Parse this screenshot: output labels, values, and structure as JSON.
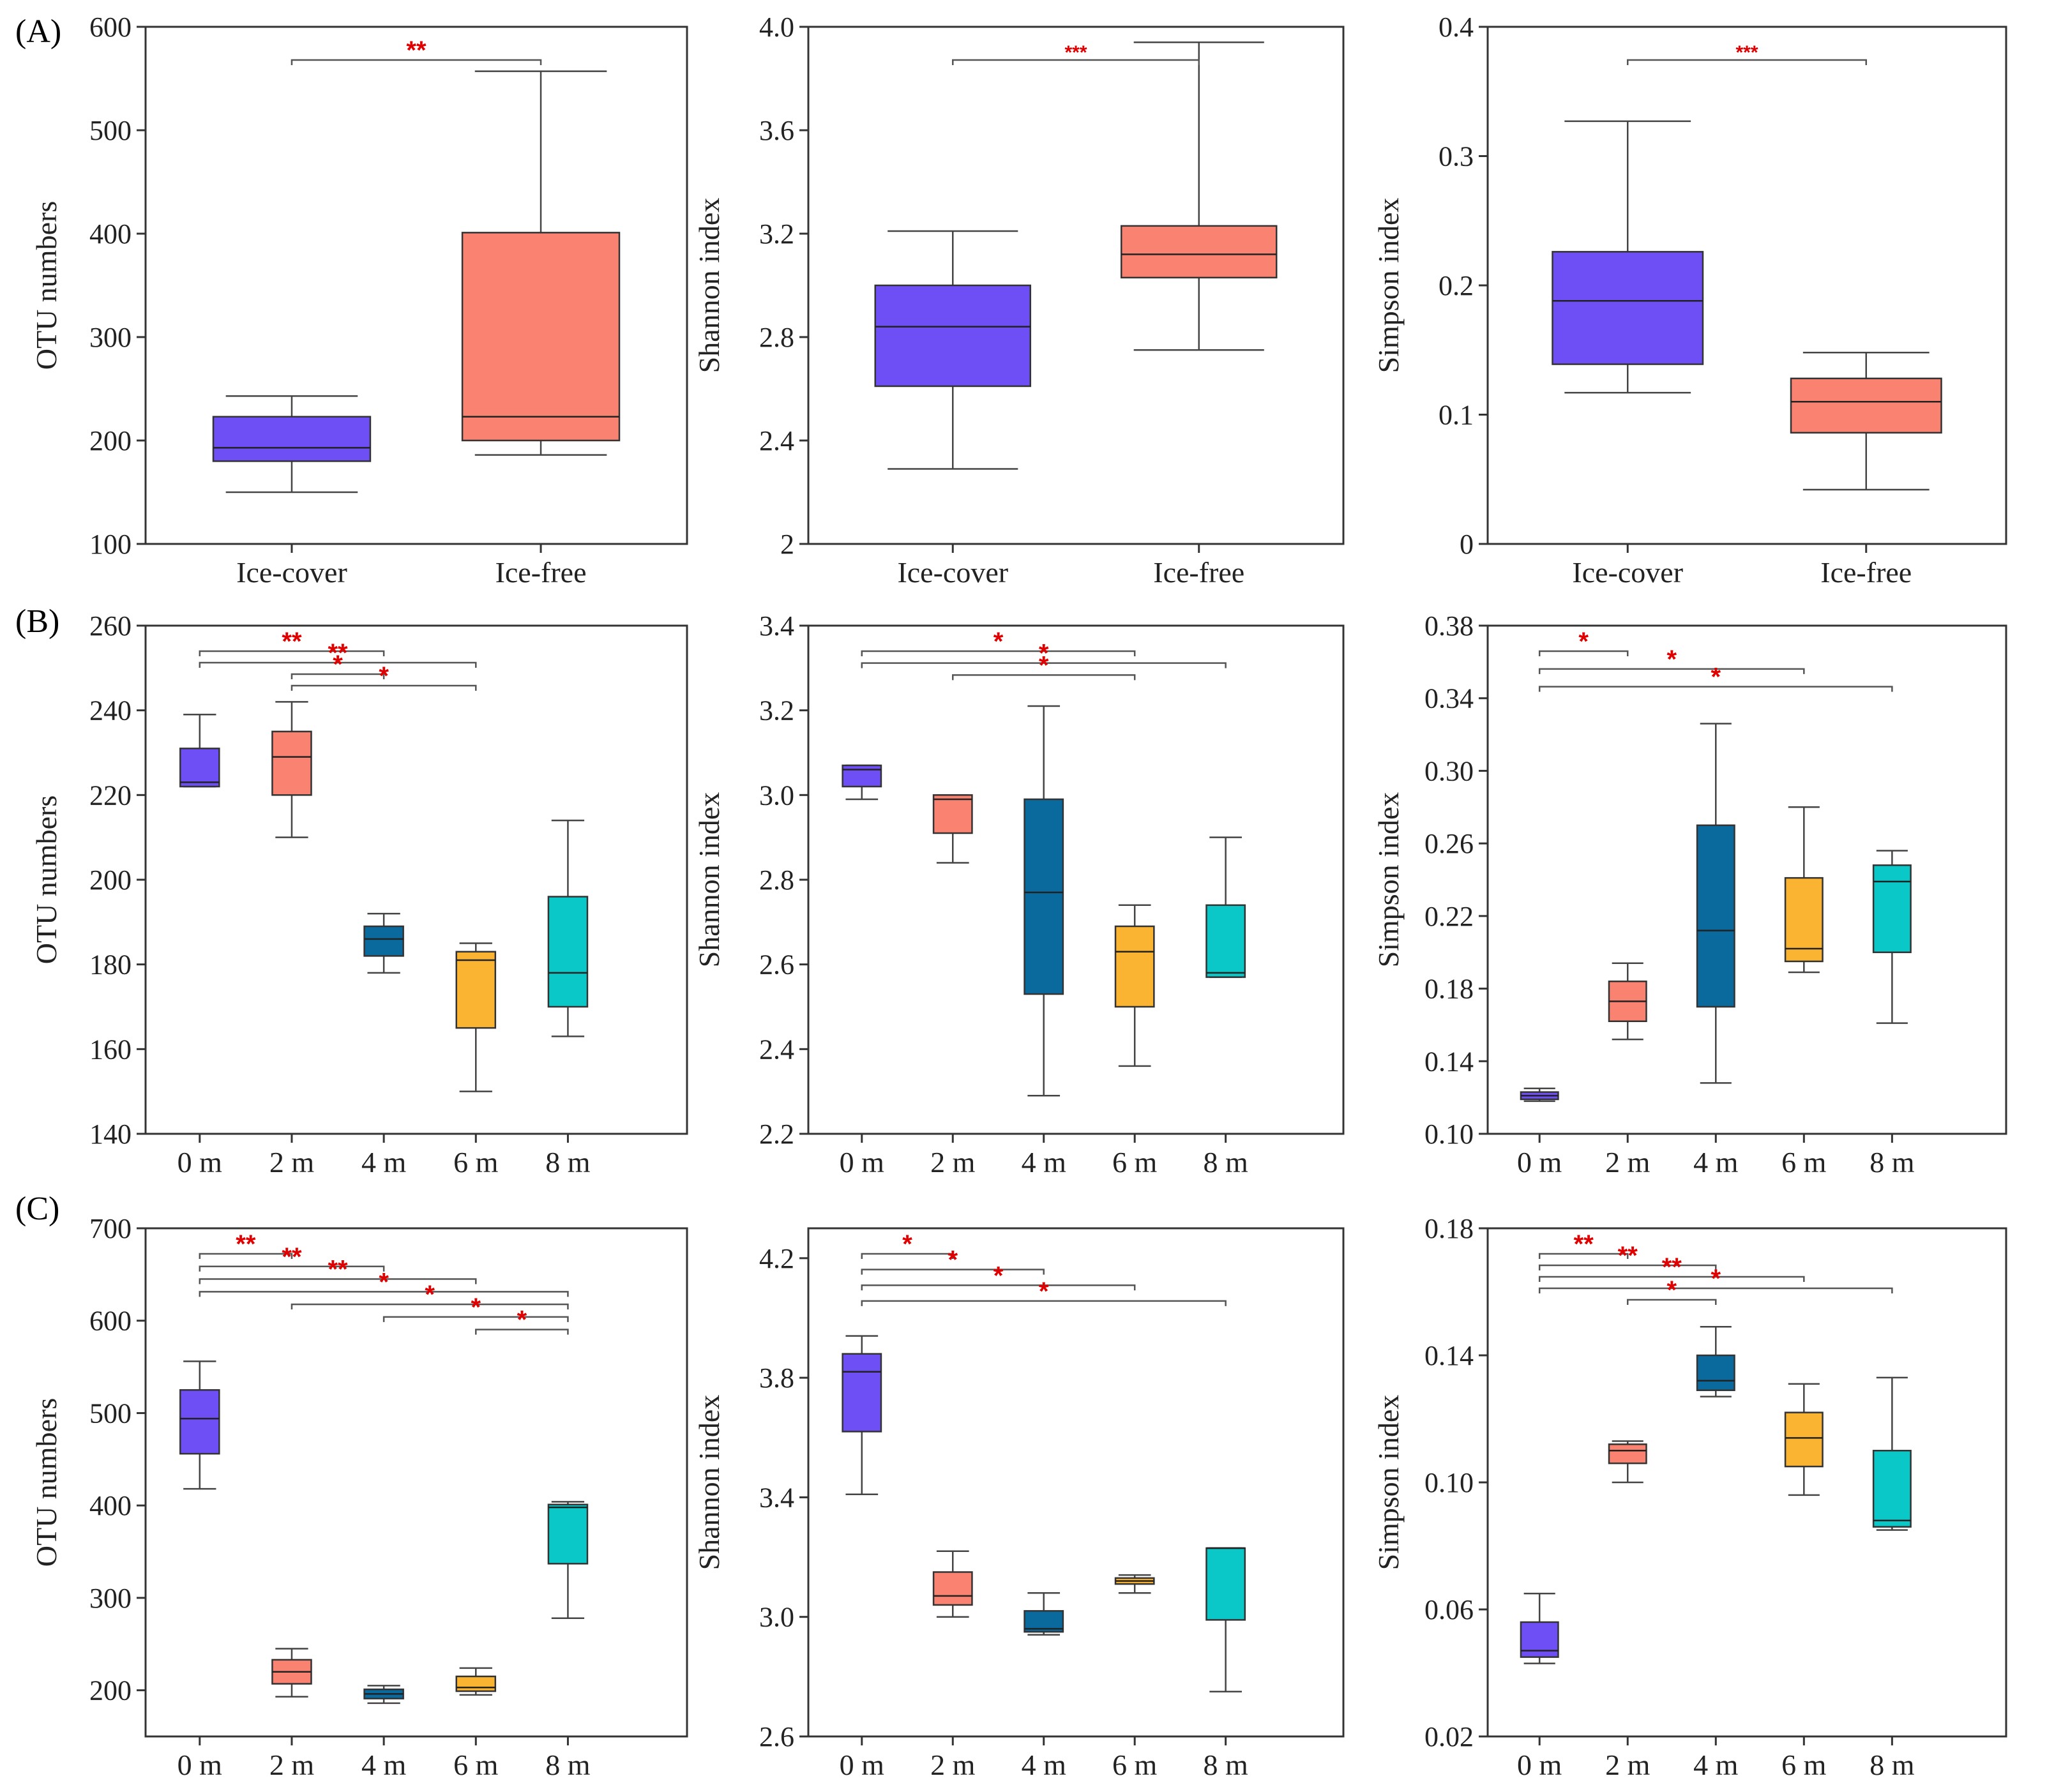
{
  "panel_labels": [
    "(A)",
    "(B)",
    "(C)"
  ],
  "colors": {
    "purple": "#6e4ff5",
    "salmon": "#fa8270",
    "blue": "#0a6a9e",
    "gold": "#fbb432",
    "cyan": "#0ac8c8",
    "sig": "#e00000"
  },
  "chart_data": [
    {
      "type": "box",
      "title": "",
      "ylabel": "OTU numbers",
      "ylim": [
        100,
        600
      ],
      "yticks": [
        100,
        200,
        300,
        400,
        500,
        600
      ],
      "tick_labels": [
        "100",
        "200",
        "300",
        "400",
        "500",
        "600"
      ],
      "categories": [
        "Ice-cover",
        "Ice-free"
      ],
      "boxes": [
        {
          "min": 150,
          "q1": 180,
          "median": 193,
          "q3": 223,
          "max": 243,
          "color": "purple"
        },
        {
          "min": 186,
          "q1": 200,
          "median": 223,
          "q3": 401,
          "max": 557,
          "color": "salmon"
        }
      ],
      "significance": [
        {
          "from": 0,
          "to": 1,
          "label": "**"
        }
      ]
    },
    {
      "type": "box",
      "title": "",
      "ylabel": "Shannon index",
      "ylim": [
        2.0,
        4.0
      ],
      "yticks": [
        2.0,
        2.4,
        2.8,
        3.2,
        3.6,
        4.0
      ],
      "tick_labels": [
        "2",
        "2.4",
        "2.8",
        "3.2",
        "3.6",
        "4.0"
      ],
      "categories": [
        "Ice-cover",
        "Ice-free"
      ],
      "boxes": [
        {
          "min": 2.29,
          "q1": 2.61,
          "median": 2.84,
          "q3": 3.0,
          "max": 3.21,
          "color": "purple"
        },
        {
          "min": 2.75,
          "q1": 3.03,
          "median": 3.12,
          "q3": 3.23,
          "max": 3.94,
          "color": "salmon"
        }
      ],
      "significance": [
        {
          "from": 0,
          "to": 1,
          "label": "***"
        }
      ]
    },
    {
      "type": "box",
      "title": "",
      "ylabel": "Simpson index",
      "ylim": [
        0,
        0.4
      ],
      "yticks": [
        0,
        0.1,
        0.2,
        0.3,
        0.4
      ],
      "tick_labels": [
        "0",
        "0.1",
        "0.2",
        "0.3",
        "0.4"
      ],
      "categories": [
        "Ice-cover",
        "Ice-free"
      ],
      "boxes": [
        {
          "min": 0.117,
          "q1": 0.139,
          "median": 0.188,
          "q3": 0.226,
          "max": 0.327,
          "color": "purple"
        },
        {
          "min": 0.042,
          "q1": 0.086,
          "median": 0.11,
          "q3": 0.128,
          "max": 0.148,
          "color": "salmon"
        }
      ],
      "significance": [
        {
          "from": 0,
          "to": 1,
          "label": "***"
        }
      ]
    },
    {
      "type": "box",
      "title": "",
      "ylabel": "OTU numbers",
      "ylim": [
        140,
        260
      ],
      "yticks": [
        140,
        160,
        180,
        200,
        220,
        240,
        260
      ],
      "tick_labels": [
        "140",
        "160",
        "180",
        "200",
        "220",
        "240",
        "260"
      ],
      "categories": [
        "0 m",
        "2 m",
        "4 m",
        "6 m",
        "8 m"
      ],
      "boxes": [
        {
          "min": 222,
          "q1": 222,
          "median": 223,
          "q3": 231,
          "max": 239,
          "color": "purple"
        },
        {
          "min": 210,
          "q1": 220,
          "median": 229,
          "q3": 235,
          "max": 242,
          "color": "salmon"
        },
        {
          "min": 178,
          "q1": 182,
          "median": 186,
          "q3": 189,
          "max": 192,
          "color": "blue"
        },
        {
          "min": 150,
          "q1": 165,
          "median": 181,
          "q3": 183,
          "max": 185,
          "color": "gold"
        },
        {
          "min": 163,
          "q1": 170,
          "median": 178,
          "q3": 196,
          "max": 214,
          "color": "cyan"
        }
      ],
      "significance": [
        {
          "from": 0,
          "to": 2,
          "label": "**"
        },
        {
          "from": 0,
          "to": 3,
          "label": "**"
        },
        {
          "from": 1,
          "to": 2,
          "label": "*"
        },
        {
          "from": 1,
          "to": 3,
          "label": "*"
        }
      ]
    },
    {
      "type": "box",
      "title": "",
      "ylabel": "Shannon index",
      "ylim": [
        2.2,
        3.4
      ],
      "yticks": [
        2.2,
        2.4,
        2.6,
        2.8,
        3.0,
        3.2,
        3.4
      ],
      "tick_labels": [
        "2.2",
        "2.4",
        "2.6",
        "2.8",
        "3.0",
        "3.2",
        "3.4"
      ],
      "categories": [
        "0 m",
        "2 m",
        "4 m",
        "6 m",
        "8 m"
      ],
      "boxes": [
        {
          "min": 2.99,
          "q1": 3.02,
          "median": 3.06,
          "q3": 3.07,
          "max": 3.07,
          "color": "purple"
        },
        {
          "min": 2.84,
          "q1": 2.91,
          "median": 2.99,
          "q3": 3.0,
          "max": 3.0,
          "color": "salmon"
        },
        {
          "min": 2.29,
          "q1": 2.53,
          "median": 2.77,
          "q3": 2.99,
          "max": 3.21,
          "color": "blue"
        },
        {
          "min": 2.36,
          "q1": 2.5,
          "median": 2.63,
          "q3": 2.69,
          "max": 2.74,
          "color": "gold"
        },
        {
          "min": 2.57,
          "q1": 2.57,
          "median": 2.58,
          "q3": 2.74,
          "max": 2.9,
          "color": "cyan"
        }
      ],
      "significance": [
        {
          "from": 0,
          "to": 3,
          "label": "*"
        },
        {
          "from": 0,
          "to": 4,
          "label": "*"
        },
        {
          "from": 1,
          "to": 3,
          "label": "*"
        }
      ]
    },
    {
      "type": "box",
      "title": "",
      "ylabel": "Simpson index",
      "ylim": [
        0.1,
        0.38
      ],
      "yticks": [
        0.1,
        0.14,
        0.18,
        0.22,
        0.26,
        0.3,
        0.34,
        0.38
      ],
      "tick_labels": [
        "0.10",
        "0.14",
        "0.18",
        "0.22",
        "0.26",
        "0.30",
        "0.34",
        "0.38"
      ],
      "categories": [
        "0 m",
        "2 m",
        "4 m",
        "6 m",
        "8 m"
      ],
      "boxes": [
        {
          "min": 0.118,
          "q1": 0.119,
          "median": 0.121,
          "q3": 0.123,
          "max": 0.125,
          "color": "purple"
        },
        {
          "min": 0.152,
          "q1": 0.162,
          "median": 0.173,
          "q3": 0.184,
          "max": 0.194,
          "color": "salmon"
        },
        {
          "min": 0.128,
          "q1": 0.17,
          "median": 0.212,
          "q3": 0.27,
          "max": 0.326,
          "color": "blue"
        },
        {
          "min": 0.189,
          "q1": 0.195,
          "median": 0.202,
          "q3": 0.241,
          "max": 0.28,
          "color": "gold"
        },
        {
          "min": 0.161,
          "q1": 0.2,
          "median": 0.239,
          "q3": 0.248,
          "max": 0.256,
          "color": "cyan"
        }
      ],
      "significance": [
        {
          "from": 0,
          "to": 1,
          "label": "*"
        },
        {
          "from": 0,
          "to": 3,
          "label": "*"
        },
        {
          "from": 0,
          "to": 4,
          "label": "*"
        }
      ]
    },
    {
      "type": "box",
      "title": "",
      "ylabel": "OTU numbers",
      "ylim": [
        150,
        700
      ],
      "yticks": [
        200,
        300,
        400,
        500,
        600,
        700
      ],
      "tick_labels": [
        "200",
        "300",
        "400",
        "500",
        "600",
        "700"
      ],
      "categories": [
        "0 m",
        "2 m",
        "4 m",
        "6 m",
        "8 m"
      ],
      "boxes": [
        {
          "min": 418,
          "q1": 456,
          "median": 494,
          "q3": 525,
          "max": 556,
          "color": "purple"
        },
        {
          "min": 193,
          "q1": 207,
          "median": 220,
          "q3": 233,
          "max": 245,
          "color": "salmon"
        },
        {
          "min": 186,
          "q1": 191,
          "median": 196,
          "q3": 201,
          "max": 205,
          "color": "blue"
        },
        {
          "min": 195,
          "q1": 199,
          "median": 203,
          "q3": 215,
          "max": 224,
          "color": "gold"
        },
        {
          "min": 278,
          "q1": 337,
          "median": 398,
          "q3": 401,
          "max": 404,
          "color": "cyan"
        }
      ],
      "significance": [
        {
          "from": 0,
          "to": 1,
          "label": "**"
        },
        {
          "from": 0,
          "to": 2,
          "label": "**"
        },
        {
          "from": 0,
          "to": 3,
          "label": "**"
        },
        {
          "from": 0,
          "to": 4,
          "label": "*"
        },
        {
          "from": 1,
          "to": 4,
          "label": "*"
        },
        {
          "from": 2,
          "to": 4,
          "label": "*"
        },
        {
          "from": 3,
          "to": 4,
          "label": "*"
        }
      ]
    },
    {
      "type": "box",
      "title": "",
      "ylabel": "Shannon index",
      "ylim": [
        2.6,
        4.3
      ],
      "yticks": [
        2.6,
        3.0,
        3.4,
        3.8,
        4.2
      ],
      "tick_labels": [
        "2.6",
        "3.0",
        "3.4",
        "3.8",
        "4.2"
      ],
      "categories": [
        "0 m",
        "2 m",
        "4 m",
        "6 m",
        "8 m"
      ],
      "boxes": [
        {
          "min": 3.41,
          "q1": 3.62,
          "median": 3.82,
          "q3": 3.88,
          "max": 3.94,
          "color": "purple"
        },
        {
          "min": 3.0,
          "q1": 3.04,
          "median": 3.07,
          "q3": 3.15,
          "max": 3.22,
          "color": "salmon"
        },
        {
          "min": 2.94,
          "q1": 2.95,
          "median": 2.96,
          "q3": 3.02,
          "max": 3.08,
          "color": "blue"
        },
        {
          "min": 3.08,
          "q1": 3.11,
          "median": 3.12,
          "q3": 3.13,
          "max": 3.14,
          "color": "gold"
        },
        {
          "min": 2.75,
          "q1": 2.99,
          "median": 3.23,
          "q3": 3.23,
          "max": 3.23,
          "color": "cyan"
        }
      ],
      "significance": [
        {
          "from": 0,
          "to": 1,
          "label": "*"
        },
        {
          "from": 0,
          "to": 2,
          "label": "*"
        },
        {
          "from": 0,
          "to": 3,
          "label": "*"
        },
        {
          "from": 0,
          "to": 4,
          "label": "*"
        }
      ]
    },
    {
      "type": "box",
      "title": "",
      "ylabel": "Simpson index",
      "ylim": [
        0.02,
        0.18
      ],
      "yticks": [
        0.02,
        0.06,
        0.1,
        0.14,
        0.18
      ],
      "tick_labels": [
        "0.02",
        "0.06",
        "0.10",
        "0.14",
        "0.18"
      ],
      "categories": [
        "0 m",
        "2 m",
        "4 m",
        "6 m",
        "8 m"
      ],
      "boxes": [
        {
          "min": 0.043,
          "q1": 0.045,
          "median": 0.047,
          "q3": 0.056,
          "max": 0.065,
          "color": "purple"
        },
        {
          "min": 0.1,
          "q1": 0.106,
          "median": 0.11,
          "q3": 0.112,
          "max": 0.113,
          "color": "salmon"
        },
        {
          "min": 0.127,
          "q1": 0.129,
          "median": 0.132,
          "q3": 0.14,
          "max": 0.149,
          "color": "blue"
        },
        {
          "min": 0.096,
          "q1": 0.105,
          "median": 0.114,
          "q3": 0.122,
          "max": 0.131,
          "color": "gold"
        },
        {
          "min": 0.085,
          "q1": 0.086,
          "median": 0.088,
          "q3": 0.11,
          "max": 0.133,
          "color": "cyan"
        }
      ],
      "significance": [
        {
          "from": 0,
          "to": 1,
          "label": "**"
        },
        {
          "from": 0,
          "to": 2,
          "label": "**"
        },
        {
          "from": 0,
          "to": 3,
          "label": "**"
        },
        {
          "from": 0,
          "to": 4,
          "label": "*"
        },
        {
          "from": 1,
          "to": 2,
          "label": "*"
        }
      ]
    }
  ]
}
